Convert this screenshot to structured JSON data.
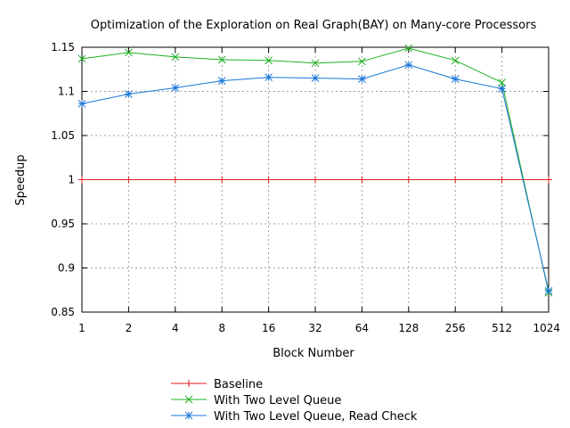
{
  "chart_data": {
    "type": "line",
    "title": "Optimization of the Exploration on Real Graph(BAY) on Many-core Processors",
    "xlabel": "Block Number",
    "ylabel": "Speedup",
    "categories": [
      "1",
      "2",
      "4",
      "8",
      "16",
      "32",
      "64",
      "128",
      "256",
      "512",
      "1024"
    ],
    "ylim": [
      0.85,
      1.15
    ],
    "yticks": [
      "0.85",
      "0.9",
      "0.95",
      "1",
      "1.05",
      "1.1",
      "1.15"
    ],
    "grid": true,
    "legend_position": "bottom-center",
    "series": [
      {
        "name": "Baseline",
        "color": "#e41a1c",
        "marker": "plus",
        "values": [
          1,
          1,
          1,
          1,
          1,
          1,
          1,
          1,
          1,
          1,
          1
        ]
      },
      {
        "name": "With Two Level Queue",
        "color": "#1db11d",
        "marker": "cross",
        "values": [
          1.137,
          1.144,
          1.139,
          1.136,
          1.135,
          1.132,
          1.134,
          1.149,
          1.135,
          1.11,
          0.872
        ]
      },
      {
        "name": "With Two Level Queue, Read Check",
        "color": "#1a76d8",
        "marker": "star",
        "values": [
          1.086,
          1.097,
          1.104,
          1.112,
          1.116,
          1.115,
          1.114,
          1.13,
          1.114,
          1.103,
          0.874
        ]
      }
    ]
  }
}
